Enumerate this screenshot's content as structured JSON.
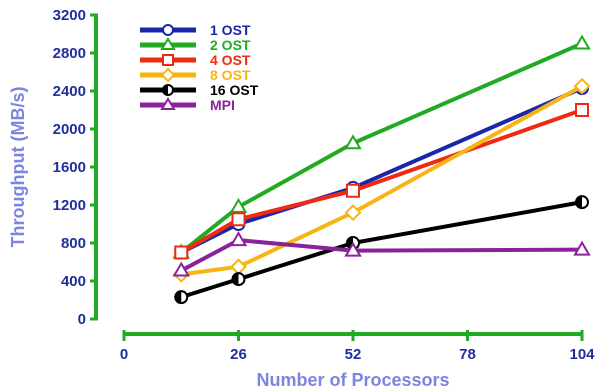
{
  "chart_data": {
    "type": "line",
    "xlabel": "Number of Processors",
    "ylabel": "Throughput (MB/s)",
    "x_ticks": [
      0,
      26,
      52,
      78,
      104
    ],
    "y_ticks": [
      0,
      400,
      800,
      1200,
      1600,
      2000,
      2400,
      2800,
      3200
    ],
    "xlim": [
      0,
      104
    ],
    "ylim": [
      0,
      3200
    ],
    "legend_position": "top-left",
    "grid": false,
    "axis_color": "#22aa22",
    "tick_label_color": "#1f2f9e",
    "axis_title_color": "#7b86e0",
    "series": [
      {
        "name": "1 OST",
        "color": "#1a27a8",
        "marker": "circle",
        "x": [
          13,
          26,
          52,
          104
        ],
        "y": [
          700,
          1000,
          1380,
          2430
        ]
      },
      {
        "name": "2 OST",
        "color": "#22aa22",
        "marker": "triangle",
        "x": [
          13,
          26,
          52,
          104
        ],
        "y": [
          700,
          1180,
          1850,
          2900
        ]
      },
      {
        "name": "4 OST",
        "color": "#ee2a12",
        "marker": "square",
        "x": [
          13,
          26,
          52,
          104
        ],
        "y": [
          700,
          1050,
          1350,
          2200
        ]
      },
      {
        "name": "8 OST",
        "color": "#f7b515",
        "marker": "diamond",
        "x": [
          13,
          26,
          52,
          104
        ],
        "y": [
          470,
          550,
          1120,
          2450
        ]
      },
      {
        "name": "16 OST",
        "color": "#000000",
        "marker": "half-circle",
        "x": [
          13,
          26,
          52,
          104
        ],
        "y": [
          230,
          420,
          800,
          1230
        ]
      },
      {
        "name": "MPI",
        "color": "#8a239a",
        "marker": "triangle",
        "x": [
          13,
          26,
          52,
          104
        ],
        "y": [
          510,
          830,
          720,
          730
        ]
      }
    ]
  }
}
